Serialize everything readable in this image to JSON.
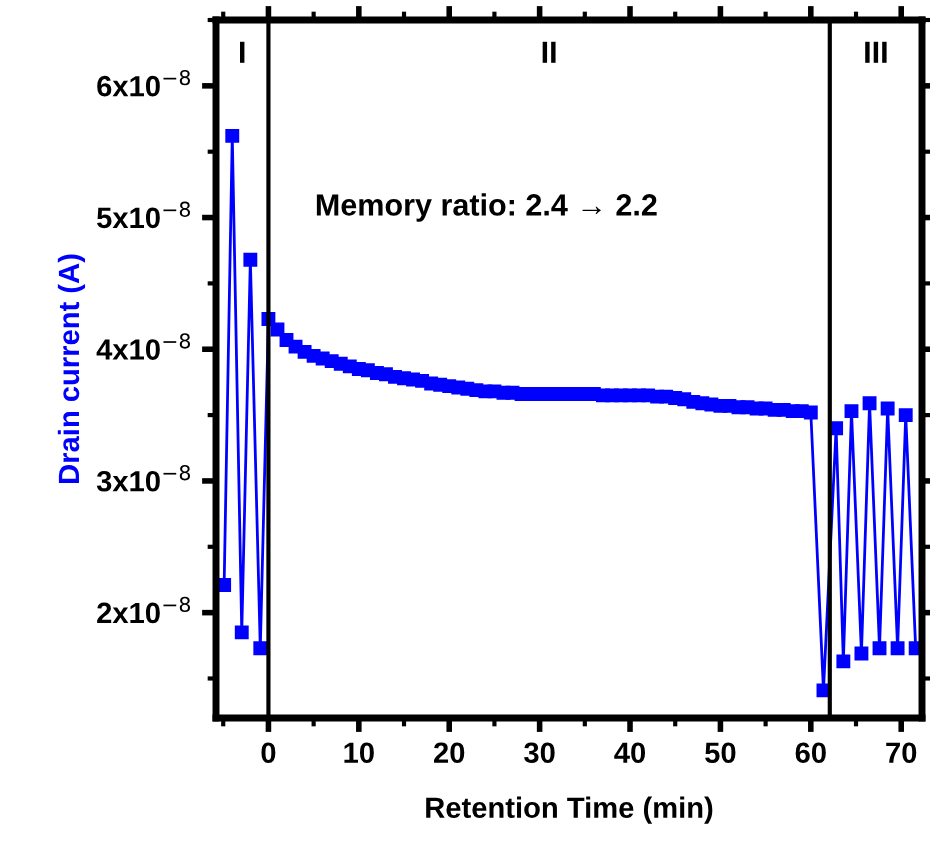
{
  "chart_data": {
    "type": "line",
    "xlabel": "Retention Time (min)",
    "ylabel": "Drain current (A)",
    "xlim": [
      -5.8,
      72.3
    ],
    "xticks": [
      0,
      10,
      20,
      30,
      40,
      50,
      60,
      70
    ],
    "ylim": [
      1.2e-08,
      6.5e-08
    ],
    "yticks": [
      {
        "value": 2e-08,
        "label": "2x10$^{−8}$"
      },
      {
        "value": 3e-08,
        "label": "3x10$^{−8}$"
      },
      {
        "value": 4e-08,
        "label": "4x10$^{−8}$"
      },
      {
        "value": 5e-08,
        "label": "5x10$^{−8}$"
      },
      {
        "value": 6e-08,
        "label": "6x10$^{−8}$"
      }
    ],
    "marker": "square",
    "line_style": "solid",
    "grid": false,
    "legend": false,
    "series": [
      {
        "color": "#0000ff",
        "x": [
          -4.9,
          -4.0,
          -2.95,
          -2.0,
          -0.9,
          0,
          1,
          2,
          3,
          4,
          5,
          6,
          7,
          8,
          9,
          10,
          11,
          12,
          13,
          14,
          15,
          16,
          17,
          18,
          19,
          20,
          21,
          22,
          23,
          24,
          25,
          26,
          27,
          28,
          29,
          30,
          31,
          32,
          33,
          34,
          35,
          36,
          37,
          38,
          39,
          40,
          41,
          42,
          43,
          44,
          45,
          46,
          47,
          48,
          49,
          50,
          51,
          52,
          53,
          54,
          55,
          56,
          57,
          58,
          59,
          60,
          61.4,
          62.8,
          63.6,
          64.5,
          65.6,
          66.5,
          67.6,
          68.5,
          69.6,
          70.5,
          71.6
        ],
        "values": [
          2.21e-08,
          5.62e-08,
          1.85e-08,
          4.68e-08,
          1.73e-08,
          4.23e-08,
          4.15e-08,
          4.07e-08,
          4.02e-08,
          3.98e-08,
          3.95e-08,
          3.93e-08,
          3.91e-08,
          3.89e-08,
          3.87e-08,
          3.85e-08,
          3.84e-08,
          3.82e-08,
          3.81e-08,
          3.79e-08,
          3.78e-08,
          3.77e-08,
          3.76e-08,
          3.74e-08,
          3.73e-08,
          3.72e-08,
          3.71e-08,
          3.7e-08,
          3.69e-08,
          3.68e-08,
          3.68e-08,
          3.67e-08,
          3.67e-08,
          3.66e-08,
          3.66e-08,
          3.66e-08,
          3.66e-08,
          3.66e-08,
          3.66e-08,
          3.66e-08,
          3.66e-08,
          3.66e-08,
          3.65e-08,
          3.65e-08,
          3.65e-08,
          3.65e-08,
          3.65e-08,
          3.65e-08,
          3.64e-08,
          3.64e-08,
          3.63e-08,
          3.62e-08,
          3.6e-08,
          3.59e-08,
          3.58e-08,
          3.57e-08,
          3.57e-08,
          3.56e-08,
          3.56e-08,
          3.55e-08,
          3.55e-08,
          3.54e-08,
          3.54e-08,
          3.53e-08,
          3.53e-08,
          3.52e-08,
          1.41e-08,
          3.4e-08,
          1.63e-08,
          3.53e-08,
          1.69e-08,
          3.59e-08,
          1.73e-08,
          3.55e-08,
          1.73e-08,
          3.5e-08,
          1.73e-08
        ]
      }
    ],
    "ref_lines": [
      {
        "axis": "x",
        "value": 0,
        "color": "#000000"
      },
      {
        "axis": "x",
        "value": 62.1,
        "color": "#000000"
      }
    ],
    "annotations": [
      "I",
      "II",
      "III",
      "Memory ratio: 2.4 → 2.2"
    ]
  }
}
